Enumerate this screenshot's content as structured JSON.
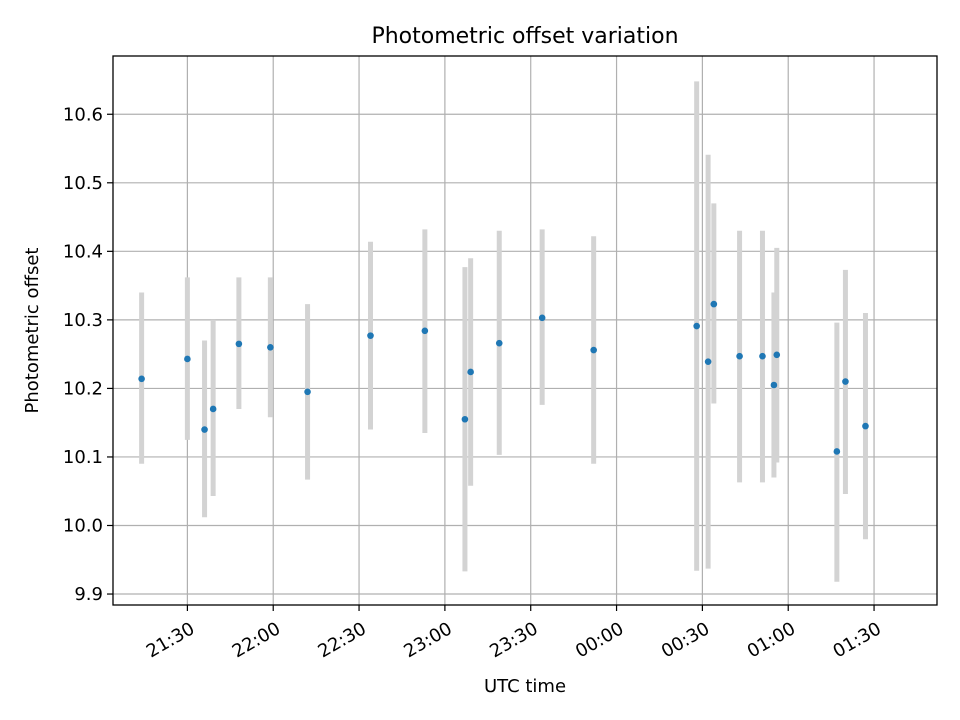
{
  "chart_data": {
    "type": "scatter",
    "title": "Photometric offset variation",
    "xlabel": "UTC time",
    "ylabel": "Photometric offset",
    "grid": true,
    "x_ticks": [
      {
        "time": "21:30",
        "label": "21:30"
      },
      {
        "time": "22:00",
        "label": "22:00"
      },
      {
        "time": "22:30",
        "label": "22:30"
      },
      {
        "time": "23:00",
        "label": "23:00"
      },
      {
        "time": "23:30",
        "label": "23:30"
      },
      {
        "time": "00:00",
        "label": "00:00"
      },
      {
        "time": "00:30",
        "label": "00:30"
      },
      {
        "time": "01:00",
        "label": "01:00"
      },
      {
        "time": "01:30",
        "label": "01:30"
      }
    ],
    "y_ticks": [
      9.9,
      10.0,
      10.1,
      10.2,
      10.3,
      10.4,
      10.5,
      10.6
    ],
    "xlim": [
      "21:04",
      "01:52"
    ],
    "ylim": [
      9.884,
      10.685
    ],
    "colors": {
      "point": "#1f77b4",
      "errorbar": "#d3d3d3",
      "grid": "#b0b0b0"
    },
    "series": [
      {
        "points": [
          {
            "time": "21:14",
            "y": 10.214,
            "ylo": 10.09,
            "yhi": 10.34
          },
          {
            "time": "21:30",
            "y": 10.243,
            "ylo": 10.125,
            "yhi": 10.362
          },
          {
            "time": "21:36",
            "y": 10.14,
            "ylo": 10.012,
            "yhi": 10.27
          },
          {
            "time": "21:39",
            "y": 10.17,
            "ylo": 10.043,
            "yhi": 10.3
          },
          {
            "time": "21:48",
            "y": 10.265,
            "ylo": 10.17,
            "yhi": 10.362
          },
          {
            "time": "21:59",
            "y": 10.26,
            "ylo": 10.158,
            "yhi": 10.362
          },
          {
            "time": "22:12",
            "y": 10.195,
            "ylo": 10.067,
            "yhi": 10.323
          },
          {
            "time": "22:34",
            "y": 10.277,
            "ylo": 10.14,
            "yhi": 10.414
          },
          {
            "time": "22:53",
            "y": 10.284,
            "ylo": 10.135,
            "yhi": 10.432
          },
          {
            "time": "23:07",
            "y": 10.155,
            "ylo": 9.933,
            "yhi": 10.377
          },
          {
            "time": "23:09",
            "y": 10.224,
            "ylo": 10.058,
            "yhi": 10.39
          },
          {
            "time": "23:19",
            "y": 10.266,
            "ylo": 10.103,
            "yhi": 10.43
          },
          {
            "time": "23:34",
            "y": 10.303,
            "ylo": 10.176,
            "yhi": 10.432
          },
          {
            "time": "23:52",
            "y": 10.256,
            "ylo": 10.09,
            "yhi": 10.422
          },
          {
            "time": "00:28",
            "y": 10.291,
            "ylo": 9.934,
            "yhi": 10.648
          },
          {
            "time": "00:32",
            "y": 10.239,
            "ylo": 9.937,
            "yhi": 10.541
          },
          {
            "time": "00:34",
            "y": 10.323,
            "ylo": 10.178,
            "yhi": 10.47
          },
          {
            "time": "00:43",
            "y": 10.247,
            "ylo": 10.063,
            "yhi": 10.43
          },
          {
            "time": "00:51",
            "y": 10.247,
            "ylo": 10.063,
            "yhi": 10.43
          },
          {
            "time": "00:55",
            "y": 10.205,
            "ylo": 10.07,
            "yhi": 10.34
          },
          {
            "time": "00:56",
            "y": 10.249,
            "ylo": 10.092,
            "yhi": 10.405
          },
          {
            "time": "01:17",
            "y": 10.108,
            "ylo": 9.918,
            "yhi": 10.296
          },
          {
            "time": "01:20",
            "y": 10.21,
            "ylo": 10.046,
            "yhi": 10.373
          },
          {
            "time": "01:27",
            "y": 10.145,
            "ylo": 9.98,
            "yhi": 10.31
          }
        ]
      }
    ]
  }
}
